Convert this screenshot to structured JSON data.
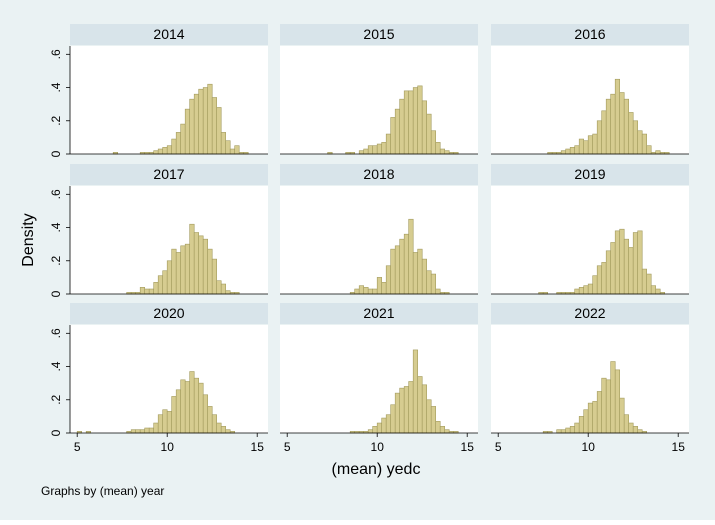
{
  "chart_data": {
    "type": "bar",
    "ylabel": "Density",
    "xlabel": "(mean) yedc",
    "note": "Graphs by (mean) year",
    "xlim": [
      4.6,
      15.6
    ],
    "ylim": [
      0,
      0.65
    ],
    "xticks": [
      "5",
      "10",
      "15"
    ],
    "yticks": [
      "0",
      ".2",
      ".4",
      ".6"
    ],
    "bin_start": 5.0,
    "bin_width": 0.25,
    "colors": {
      "bar_fill": "#d6cc90",
      "bar_stroke": "#a29a5c",
      "strip": "#d8e4ea",
      "plot_bg": "#ffffff",
      "outer_bg": "#eaf2f3"
    },
    "panels": [
      {
        "label": "2014",
        "values": [
          0,
          0,
          0,
          0,
          0,
          0,
          0,
          0,
          0.01,
          0,
          0,
          0,
          0,
          0,
          0.01,
          0.01,
          0.01,
          0.02,
          0.03,
          0.04,
          0.05,
          0.09,
          0.13,
          0.18,
          0.27,
          0.33,
          0.36,
          0.39,
          0.4,
          0.42,
          0.34,
          0.28,
          0.13,
          0.08,
          0.03,
          0.05,
          0.01,
          0.01,
          0,
          0,
          0,
          0,
          0,
          0
        ]
      },
      {
        "label": "2015",
        "values": [
          0,
          0,
          0,
          0,
          0,
          0,
          0,
          0,
          0,
          0.01,
          0,
          0,
          0,
          0.01,
          0.01,
          0,
          0.02,
          0.03,
          0.05,
          0.05,
          0.06,
          0.07,
          0.12,
          0.22,
          0.27,
          0.33,
          0.38,
          0.38,
          0.4,
          0.41,
          0.32,
          0.24,
          0.14,
          0.07,
          0.03,
          0.02,
          0.01,
          0.01,
          0,
          0,
          0,
          0,
          0,
          0
        ]
      },
      {
        "label": "2016",
        "values": [
          0,
          0,
          0,
          0,
          0,
          0,
          0,
          0,
          0,
          0,
          0,
          0.01,
          0.01,
          0.01,
          0.02,
          0.03,
          0.04,
          0.05,
          0.09,
          0.08,
          0.11,
          0.12,
          0.2,
          0.26,
          0.33,
          0.36,
          0.45,
          0.37,
          0.33,
          0.25,
          0.2,
          0.14,
          0.12,
          0.05,
          0.01,
          0.02,
          0.01,
          0.01,
          0,
          0,
          0,
          0,
          0,
          0
        ]
      },
      {
        "label": "2017",
        "values": [
          0,
          0,
          0,
          0,
          0,
          0,
          0,
          0,
          0,
          0,
          0,
          0.01,
          0.01,
          0.01,
          0.04,
          0.03,
          0.03,
          0.07,
          0.11,
          0.14,
          0.2,
          0.27,
          0.25,
          0.29,
          0.3,
          0.42,
          0.37,
          0.35,
          0.33,
          0.27,
          0.21,
          0.08,
          0.06,
          0.02,
          0.01,
          0.01,
          0,
          0,
          0,
          0,
          0,
          0,
          0,
          0
        ]
      },
      {
        "label": "2018",
        "values": [
          0,
          0,
          0,
          0,
          0,
          0,
          0,
          0,
          0,
          0,
          0,
          0,
          0,
          0,
          0.01,
          0.03,
          0.05,
          0.04,
          0.03,
          0.03,
          0.1,
          0.07,
          0.17,
          0.27,
          0.29,
          0.33,
          0.36,
          0.45,
          0.25,
          0.27,
          0.21,
          0.14,
          0.12,
          0.03,
          0.01,
          0.01,
          0,
          0,
          0,
          0,
          0,
          0,
          0,
          0
        ]
      },
      {
        "label": "2019",
        "values": [
          0,
          0,
          0,
          0,
          0,
          0,
          0,
          0,
          0,
          0.01,
          0.01,
          0,
          0,
          0.01,
          0.01,
          0.01,
          0.01,
          0.03,
          0.04,
          0.05,
          0.06,
          0.11,
          0.17,
          0.19,
          0.26,
          0.31,
          0.38,
          0.39,
          0.33,
          0.28,
          0.37,
          0.38,
          0.15,
          0.12,
          0.05,
          0.03,
          0.01,
          0,
          0,
          0,
          0,
          0,
          0,
          0
        ]
      },
      {
        "label": "2020",
        "values": [
          0.01,
          0,
          0.01,
          0,
          0,
          0,
          0,
          0,
          0,
          0,
          0,
          0.01,
          0.02,
          0.02,
          0.02,
          0.03,
          0.03,
          0.06,
          0.11,
          0.14,
          0.13,
          0.22,
          0.26,
          0.32,
          0.31,
          0.37,
          0.33,
          0.3,
          0.23,
          0.16,
          0.11,
          0.06,
          0.04,
          0.02,
          0.01,
          0,
          0,
          0,
          0,
          0,
          0,
          0,
          0,
          0
        ]
      },
      {
        "label": "2021",
        "values": [
          0,
          0,
          0,
          0,
          0,
          0,
          0,
          0,
          0,
          0,
          0,
          0,
          0,
          0,
          0.01,
          0.01,
          0.01,
          0.01,
          0.02,
          0.04,
          0.06,
          0.09,
          0.11,
          0.17,
          0.24,
          0.27,
          0.28,
          0.31,
          0.5,
          0.34,
          0.29,
          0.2,
          0.16,
          0.07,
          0.04,
          0.02,
          0.01,
          0.01,
          0,
          0,
          0,
          0,
          0,
          0
        ]
      },
      {
        "label": "2022",
        "values": [
          0,
          0,
          0,
          0,
          0,
          0,
          0,
          0,
          0,
          0,
          0.01,
          0.01,
          0,
          0.02,
          0.02,
          0.03,
          0.04,
          0.06,
          0.1,
          0.14,
          0.18,
          0.19,
          0.25,
          0.33,
          0.32,
          0.43,
          0.38,
          0.21,
          0.11,
          0.06,
          0.04,
          0.02,
          0.01,
          0,
          0,
          0,
          0,
          0,
          0,
          0,
          0,
          0,
          0,
          0
        ]
      }
    ]
  }
}
